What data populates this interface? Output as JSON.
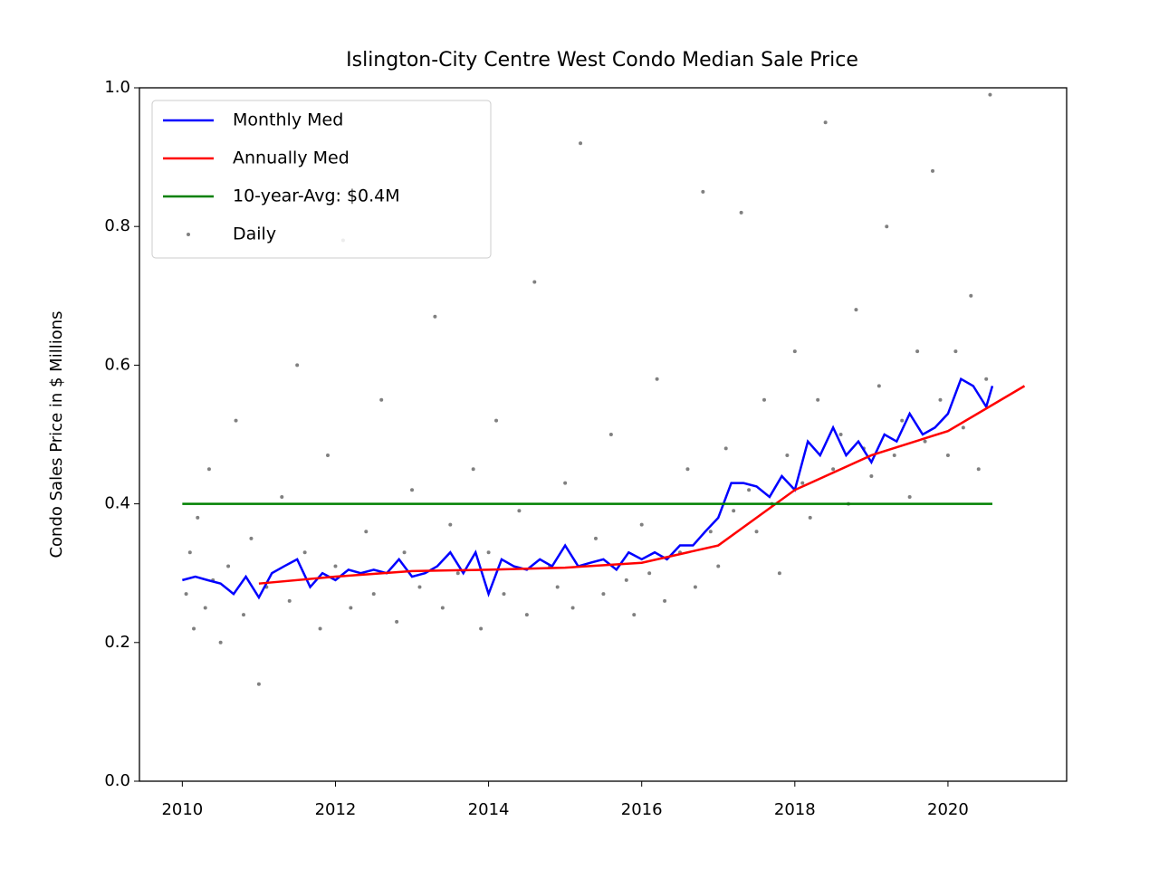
{
  "chart_data": {
    "type": "line",
    "title": "Islington-City Centre West Condo Median Sale Price",
    "y_label": "Condo Sales Price in $ Millions",
    "xlim": [
      2009.44,
      2021.55
    ],
    "ylim": [
      0,
      1
    ],
    "xticks": [
      2010,
      2012,
      2014,
      2016,
      2018,
      2020
    ],
    "yticks": [
      {
        "value": 0,
        "label": "0.0"
      },
      0.2,
      0.4,
      0.6,
      0.8,
      {
        "value": 1,
        "label": "1.0"
      }
    ],
    "legend_position": "upper left",
    "series": [
      {
        "name": "Monthly Med",
        "color": "#0000ff",
        "style": "line",
        "x": [
          2010.0,
          2010.17,
          2010.33,
          2010.5,
          2010.67,
          2010.83,
          2011.0,
          2011.17,
          2011.33,
          2011.5,
          2011.67,
          2011.83,
          2012.0,
          2012.17,
          2012.33,
          2012.5,
          2012.67,
          2012.83,
          2013.0,
          2013.17,
          2013.33,
          2013.5,
          2013.67,
          2013.83,
          2014.0,
          2014.17,
          2014.33,
          2014.5,
          2014.67,
          2014.83,
          2015.0,
          2015.17,
          2015.33,
          2015.5,
          2015.67,
          2015.83,
          2016.0,
          2016.17,
          2016.33,
          2016.5,
          2016.67,
          2016.83,
          2017.0,
          2017.17,
          2017.33,
          2017.5,
          2017.67,
          2017.83,
          2018.0,
          2018.17,
          2018.33,
          2018.5,
          2018.67,
          2018.83,
          2019.0,
          2019.17,
          2019.33,
          2019.5,
          2019.67,
          2019.83,
          2020.0,
          2020.17,
          2020.33,
          2020.5,
          2020.58
        ],
        "values": [
          0.29,
          0.295,
          0.29,
          0.285,
          0.27,
          0.295,
          0.265,
          0.3,
          0.31,
          0.32,
          0.28,
          0.3,
          0.29,
          0.305,
          0.3,
          0.305,
          0.3,
          0.32,
          0.295,
          0.3,
          0.31,
          0.33,
          0.3,
          0.33,
          0.27,
          0.32,
          0.31,
          0.305,
          0.32,
          0.31,
          0.34,
          0.31,
          0.315,
          0.32,
          0.305,
          0.33,
          0.32,
          0.33,
          0.32,
          0.34,
          0.34,
          0.36,
          0.38,
          0.43,
          0.43,
          0.425,
          0.41,
          0.44,
          0.42,
          0.49,
          0.47,
          0.51,
          0.47,
          0.49,
          0.46,
          0.5,
          0.49,
          0.53,
          0.5,
          0.51,
          0.53,
          0.58,
          0.57,
          0.54,
          0.57
        ]
      },
      {
        "name": "Annually Med",
        "color": "#ff0000",
        "style": "line",
        "x": [
          2011,
          2012,
          2013,
          2014,
          2015,
          2016,
          2017,
          2018,
          2019,
          2020,
          2021
        ],
        "values": [
          0.285,
          0.295,
          0.303,
          0.305,
          0.308,
          0.315,
          0.34,
          0.42,
          0.47,
          0.505,
          0.57
        ]
      },
      {
        "name": "10-year-Avg: $0.4M",
        "color": "#008000",
        "style": "line",
        "x": [
          2010,
          2020.58
        ],
        "values": [
          0.4,
          0.4
        ]
      },
      {
        "name": "Daily",
        "color": "#808080",
        "style": "scatter",
        "x": [
          2010.05,
          2010.1,
          2010.15,
          2010.2,
          2010.3,
          2010.35,
          2010.4,
          2010.5,
          2010.6,
          2010.7,
          2010.8,
          2010.9,
          2011.0,
          2011.1,
          2011.3,
          2011.4,
          2011.5,
          2011.6,
          2011.8,
          2011.9,
          2012.0,
          2012.1,
          2012.2,
          2012.4,
          2012.5,
          2012.6,
          2012.8,
          2012.9,
          2013.0,
          2013.1,
          2013.3,
          2013.4,
          2013.5,
          2013.6,
          2013.8,
          2013.9,
          2014.0,
          2014.1,
          2014.2,
          2014.4,
          2014.5,
          2014.6,
          2014.8,
          2014.9,
          2015.0,
          2015.1,
          2015.2,
          2015.4,
          2015.5,
          2015.6,
          2015.8,
          2015.9,
          2016.0,
          2016.1,
          2016.2,
          2016.3,
          2016.5,
          2016.6,
          2016.7,
          2016.8,
          2016.9,
          2017.0,
          2017.1,
          2017.2,
          2017.3,
          2017.4,
          2017.5,
          2017.6,
          2017.7,
          2017.8,
          2017.9,
          2018.0,
          2018.1,
          2018.2,
          2018.3,
          2018.4,
          2018.5,
          2018.6,
          2018.7,
          2018.8,
          2018.9,
          2019.0,
          2019.1,
          2019.2,
          2019.3,
          2019.4,
          2019.5,
          2019.6,
          2019.7,
          2019.8,
          2019.9,
          2020.0,
          2020.1,
          2020.2,
          2020.3,
          2020.4,
          2020.5,
          2020.55
        ],
        "values": [
          0.27,
          0.33,
          0.22,
          0.38,
          0.25,
          0.45,
          0.29,
          0.2,
          0.31,
          0.52,
          0.24,
          0.35,
          0.14,
          0.28,
          0.41,
          0.26,
          0.6,
          0.33,
          0.22,
          0.47,
          0.31,
          0.78,
          0.25,
          0.36,
          0.27,
          0.55,
          0.23,
          0.33,
          0.42,
          0.28,
          0.67,
          0.25,
          0.37,
          0.3,
          0.45,
          0.22,
          0.33,
          0.52,
          0.27,
          0.39,
          0.24,
          0.72,
          0.31,
          0.28,
          0.43,
          0.25,
          0.92,
          0.35,
          0.27,
          0.5,
          0.29,
          0.24,
          0.37,
          0.3,
          0.58,
          0.26,
          0.33,
          0.45,
          0.28,
          0.85,
          0.36,
          0.31,
          0.48,
          0.39,
          0.82,
          0.42,
          0.36,
          0.55,
          0.4,
          0.3,
          0.47,
          0.62,
          0.43,
          0.38,
          0.55,
          0.95,
          0.45,
          0.5,
          0.4,
          0.68,
          0.48,
          0.44,
          0.57,
          0.8,
          0.47,
          0.52,
          0.41,
          0.62,
          0.49,
          0.88,
          0.55,
          0.47,
          0.62,
          0.51,
          0.7,
          0.45,
          0.58,
          0.99
        ]
      }
    ]
  }
}
